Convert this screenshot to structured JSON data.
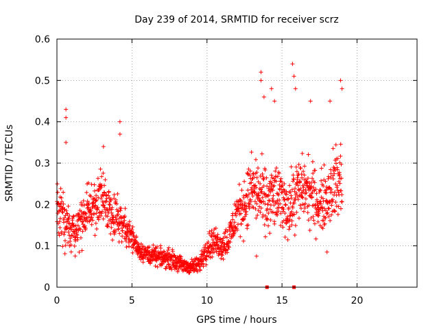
{
  "chart_data": {
    "type": "scatter",
    "title": "Day 239 of 2014, SRMTID for receiver scrz",
    "xlabel": "GPS time / hours",
    "ylabel": "SRMTID / TECUs",
    "xlim": [
      0,
      24
    ],
    "ylim": [
      0,
      0.6
    ],
    "xticks": [
      0,
      5,
      10,
      15,
      20
    ],
    "xtick_labels": [
      "0",
      "5",
      "10",
      "15",
      "20"
    ],
    "yticks": [
      0,
      0.1,
      0.2,
      0.3,
      0.4,
      0.5,
      0.6
    ],
    "ytick_labels": [
      "0",
      "0.1",
      "0.2",
      "0.3",
      "0.4",
      "0.5",
      "0.6"
    ],
    "grid": true,
    "marker": "+",
    "color": "#ff0000",
    "series": [
      {
        "name": "SRMTID",
        "envelope": {
          "x": [
            0,
            0.5,
            1,
            1.5,
            2,
            2.5,
            3,
            3.5,
            4,
            4.5,
            5,
            5.5,
            6,
            6.5,
            7,
            7.5,
            8,
            8.5,
            9,
            9.5,
            10,
            10.5,
            11,
            11.5,
            12,
            12.5,
            13,
            13.5,
            14,
            14.5,
            15,
            15.5,
            16,
            16.5,
            17,
            17.5,
            18,
            18.5,
            19
          ],
          "mean": [
            0.19,
            0.16,
            0.13,
            0.15,
            0.18,
            0.2,
            0.21,
            0.19,
            0.17,
            0.15,
            0.12,
            0.09,
            0.08,
            0.075,
            0.07,
            0.07,
            0.06,
            0.05,
            0.05,
            0.055,
            0.1,
            0.11,
            0.1,
            0.12,
            0.18,
            0.2,
            0.24,
            0.22,
            0.2,
            0.22,
            0.21,
            0.19,
            0.23,
            0.24,
            0.22,
            0.2,
            0.22,
            0.25,
            0.26
          ],
          "spread": [
            0.06,
            0.07,
            0.05,
            0.05,
            0.05,
            0.06,
            0.06,
            0.05,
            0.05,
            0.04,
            0.03,
            0.02,
            0.02,
            0.02,
            0.02,
            0.02,
            0.02,
            0.015,
            0.015,
            0.02,
            0.03,
            0.03,
            0.03,
            0.04,
            0.05,
            0.06,
            0.07,
            0.08,
            0.07,
            0.07,
            0.06,
            0.07,
            0.07,
            0.07,
            0.07,
            0.06,
            0.07,
            0.08,
            0.09
          ]
        },
        "outliers": [
          {
            "x": 0.6,
            "y": 0.43
          },
          {
            "x": 0.6,
            "y": 0.41
          },
          {
            "x": 0.6,
            "y": 0.35
          },
          {
            "x": 3.1,
            "y": 0.34
          },
          {
            "x": 4.2,
            "y": 0.4
          },
          {
            "x": 4.2,
            "y": 0.37
          },
          {
            "x": 13.6,
            "y": 0.52
          },
          {
            "x": 13.6,
            "y": 0.5
          },
          {
            "x": 13.8,
            "y": 0.46
          },
          {
            "x": 14.3,
            "y": 0.48
          },
          {
            "x": 14.5,
            "y": 0.45
          },
          {
            "x": 15.7,
            "y": 0.54
          },
          {
            "x": 15.8,
            "y": 0.51
          },
          {
            "x": 15.9,
            "y": 0.48
          },
          {
            "x": 16.9,
            "y": 0.45
          },
          {
            "x": 18.2,
            "y": 0.45
          },
          {
            "x": 18.9,
            "y": 0.5
          },
          {
            "x": 19.0,
            "y": 0.48
          },
          {
            "x": 13.3,
            "y": 0.075
          },
          {
            "x": 18.0,
            "y": 0.085
          }
        ],
        "zero_markers": [
          {
            "x": 14.0,
            "y": 0
          },
          {
            "x": 15.8,
            "y": 0
          }
        ]
      }
    ]
  }
}
